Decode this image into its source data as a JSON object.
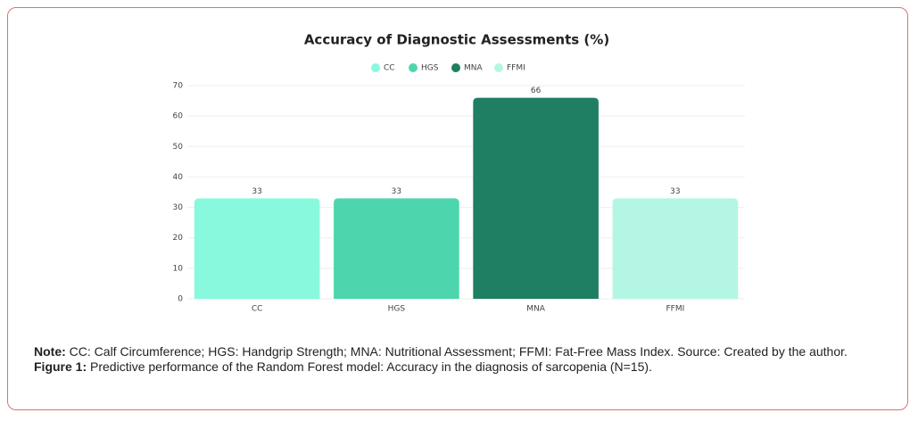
{
  "chart_data": {
    "type": "bar",
    "title": "Accuracy of Diagnostic Assessments (%)",
    "categories": [
      "CC",
      "HGS",
      "MNA",
      "FFMI"
    ],
    "values": [
      33,
      33,
      66,
      33
    ],
    "colors": [
      "#88f9dc",
      "#4dd6ad",
      "#1f7f62",
      "#b3f6e4"
    ],
    "ylim": [
      0,
      70
    ],
    "yticks": [
      0,
      10,
      20,
      30,
      40,
      50,
      60,
      70
    ],
    "grid": true,
    "legend": "top"
  },
  "note": {
    "label": "Note:",
    "text": "CC: Calf Circumference; HGS: Handgrip Strength; MNA: Nutritional Assessment; FFMI: Fat-Free Mass Index. Source: Created by the author."
  },
  "caption": {
    "label": "Figure 1:",
    "text": "Predictive performance of the Random Forest model: Accuracy in the diagnosis of sarcopenia (N=15)."
  }
}
